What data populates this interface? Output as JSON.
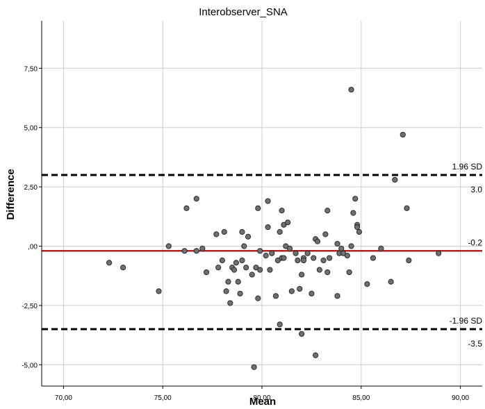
{
  "chart_data": {
    "type": "scatter",
    "title": "Interobserver_SNA",
    "xlabel": "Mean",
    "ylabel": "Difference",
    "xlim": [
      68.9,
      91.1
    ],
    "ylim": [
      -5.9,
      9.5
    ],
    "x_ticks": [
      70,
      75,
      80,
      85,
      90
    ],
    "x_tick_labels": [
      "70,00",
      "75,00",
      "80,00",
      "85,00",
      "90,00"
    ],
    "y_ticks": [
      -5,
      -2.5,
      0,
      2.5,
      5,
      7.5
    ],
    "y_tick_labels": [
      "-5,00",
      "-2,50",
      ",00",
      "2,50",
      "5,00",
      "7,50"
    ],
    "grid": true,
    "colors": {
      "points": "#707070",
      "mean_line": "#b22222",
      "limit_lines": "#000000",
      "grid": "#cccccc"
    },
    "reference_lines": [
      {
        "y": 3.0,
        "style": "dashed",
        "label_top": "1.96 SD",
        "label_bottom": "3.0"
      },
      {
        "y": -0.2,
        "style": "solid",
        "label_top": "-0.2",
        "label_bottom": ""
      },
      {
        "y": -3.5,
        "style": "dashed",
        "label_top": "-1.96 SD",
        "label_bottom": "-3.5"
      }
    ],
    "points": [
      [
        72.3,
        -0.7
      ],
      [
        73.0,
        -0.9
      ],
      [
        74.8,
        -1.9
      ],
      [
        75.3,
        0.0
      ],
      [
        76.1,
        -0.2
      ],
      [
        76.2,
        1.6
      ],
      [
        76.7,
        2.0
      ],
      [
        76.7,
        -0.2
      ],
      [
        77.0,
        -0.1
      ],
      [
        77.2,
        -1.1
      ],
      [
        77.7,
        0.5
      ],
      [
        77.8,
        -0.9
      ],
      [
        78.0,
        -0.6
      ],
      [
        78.1,
        0.6
      ],
      [
        78.2,
        -1.9
      ],
      [
        78.3,
        -1.5
      ],
      [
        78.4,
        -2.4
      ],
      [
        78.5,
        -0.9
      ],
      [
        78.6,
        -1.0
      ],
      [
        78.7,
        -0.7
      ],
      [
        78.8,
        -1.5
      ],
      [
        78.9,
        -2.0
      ],
      [
        79.0,
        0.6
      ],
      [
        79.0,
        -0.6
      ],
      [
        79.1,
        0.0
      ],
      [
        79.2,
        -0.9
      ],
      [
        79.3,
        0.4
      ],
      [
        79.5,
        -1.2
      ],
      [
        79.6,
        -5.1
      ],
      [
        79.7,
        -0.9
      ],
      [
        79.8,
        -2.2
      ],
      [
        79.8,
        1.6
      ],
      [
        79.9,
        -1.0
      ],
      [
        79.9,
        -0.2
      ],
      [
        80.2,
        -0.4
      ],
      [
        80.3,
        0.8
      ],
      [
        80.3,
        1.9
      ],
      [
        80.4,
        -1.0
      ],
      [
        80.5,
        -0.3
      ],
      [
        80.7,
        -2.1
      ],
      [
        80.8,
        -0.6
      ],
      [
        80.9,
        0.6
      ],
      [
        80.9,
        -3.3
      ],
      [
        81.0,
        1.5
      ],
      [
        81.0,
        -0.5
      ],
      [
        81.1,
        0.9
      ],
      [
        81.1,
        -0.5
      ],
      [
        81.2,
        0.0
      ],
      [
        81.3,
        1.0
      ],
      [
        81.4,
        -0.1
      ],
      [
        81.5,
        -1.9
      ],
      [
        81.7,
        -0.3
      ],
      [
        81.8,
        -0.6
      ],
      [
        81.9,
        -1.8
      ],
      [
        82.0,
        -3.7
      ],
      [
        82.0,
        -1.2
      ],
      [
        82.1,
        -0.5
      ],
      [
        82.1,
        -0.6
      ],
      [
        82.3,
        -0.3
      ],
      [
        82.5,
        -2.0
      ],
      [
        82.6,
        -0.5
      ],
      [
        82.7,
        -4.6
      ],
      [
        82.7,
        0.3
      ],
      [
        82.8,
        0.2
      ],
      [
        82.9,
        -1.0
      ],
      [
        83.1,
        -0.6
      ],
      [
        83.2,
        0.5
      ],
      [
        83.3,
        -1.1
      ],
      [
        83.3,
        1.5
      ],
      [
        83.4,
        -0.5
      ],
      [
        83.8,
        -2.1
      ],
      [
        83.8,
        0.1
      ],
      [
        83.9,
        -0.3
      ],
      [
        84.0,
        -0.1
      ],
      [
        84.1,
        -0.3
      ],
      [
        84.3,
        -0.4
      ],
      [
        84.4,
        -1.1
      ],
      [
        84.5,
        0.0
      ],
      [
        84.5,
        6.6
      ],
      [
        84.6,
        1.4
      ],
      [
        84.7,
        2.0
      ],
      [
        84.8,
        0.9
      ],
      [
        84.8,
        0.8
      ],
      [
        84.9,
        0.6
      ],
      [
        85.3,
        -1.6
      ],
      [
        85.6,
        -0.5
      ],
      [
        86.0,
        -0.1
      ],
      [
        86.5,
        -1.5
      ],
      [
        86.7,
        2.8
      ],
      [
        87.1,
        4.7
      ],
      [
        87.3,
        1.6
      ],
      [
        87.4,
        -0.6
      ],
      [
        88.9,
        -0.3
      ]
    ]
  }
}
